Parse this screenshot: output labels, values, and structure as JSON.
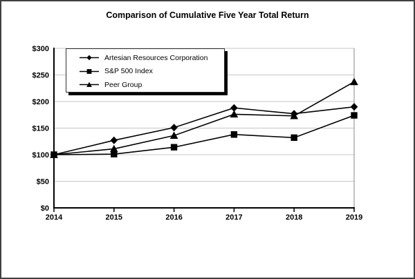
{
  "figure": {
    "title": "Comparison of Cumulative Five Year Total Return"
  },
  "chart_data": {
    "type": "line",
    "title": "Comparison of Cumulative Five Year Total Return",
    "categories": [
      "2014",
      "2015",
      "2016",
      "2017",
      "2018",
      "2019"
    ],
    "series": [
      {
        "name": "Artesian Resources Corporation",
        "marker": "diamond",
        "color": "#000000",
        "values": [
          100,
          127,
          151,
          188,
          177,
          190
        ]
      },
      {
        "name": "S&P 500 Index",
        "marker": "square",
        "color": "#000000",
        "values": [
          100,
          101,
          114,
          138,
          132,
          174
        ]
      },
      {
        "name": "Peer Group",
        "marker": "triangle",
        "color": "#000000",
        "values": [
          100,
          111,
          136,
          176,
          173,
          237
        ]
      }
    ],
    "xlabel": "",
    "ylabel": "",
    "ylim": [
      0,
      300
    ],
    "ytick_step": 50,
    "ytick_labels": [
      "$0",
      "$50",
      "$100",
      "$150",
      "$200",
      "$250",
      "$300"
    ],
    "grid": true,
    "legend_position": "top-left-inside",
    "colors": {
      "series": "#000000",
      "gridline": "#c6c6c6",
      "axis": "#000000",
      "plot_frame": "#9b9b9b",
      "outer_border": "#404040",
      "background": "#ffffff",
      "legend_shadow": "#000000"
    }
  }
}
